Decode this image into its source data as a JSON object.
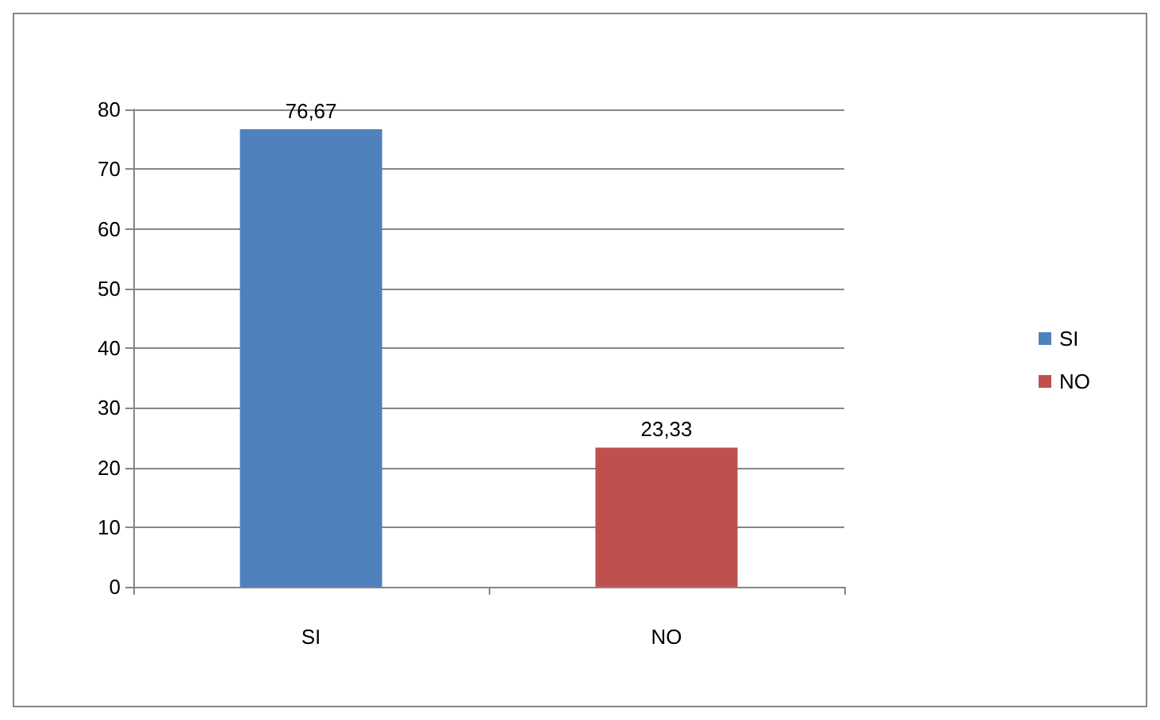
{
  "chart_data": {
    "type": "bar",
    "categories": [
      "SI",
      "NO"
    ],
    "series": [
      {
        "name": "SI",
        "color": "#4f81bd",
        "values": [
          76.67,
          null
        ],
        "value_labels": [
          "76,67",
          null
        ]
      },
      {
        "name": "NO",
        "color": "#c0504d",
        "values": [
          null,
          23.33
        ],
        "value_labels": [
          null,
          "23,33"
        ]
      }
    ],
    "ylim": [
      0,
      80
    ],
    "yticks": [
      0,
      10,
      20,
      30,
      40,
      50,
      60,
      70,
      80
    ],
    "grid": "y",
    "legend": "right"
  }
}
